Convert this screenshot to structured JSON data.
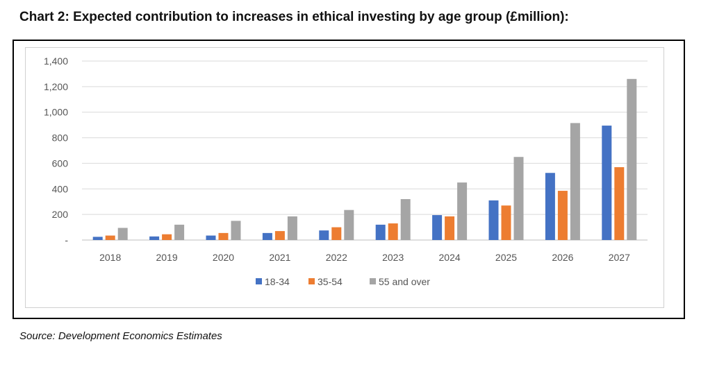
{
  "title": "Chart 2: Expected contribution to increases in ethical investing by age group (£million):",
  "source": "Source: Development Economics Estimates",
  "chart_data": {
    "type": "bar",
    "title": "Chart 2: Expected contribution to increases in ethical investing by age group (£million):",
    "xlabel": "",
    "ylabel": "",
    "ylim": [
      0,
      1400
    ],
    "yticks": [
      0,
      200,
      400,
      600,
      800,
      1000,
      1200,
      1400
    ],
    "ytick_labels": [
      "-",
      "200",
      "400",
      "600",
      "800",
      "1,000",
      "1,200",
      "1,400"
    ],
    "grid": true,
    "legend_position": "bottom",
    "categories": [
      "2018",
      "2019",
      "2020",
      "2021",
      "2022",
      "2023",
      "2024",
      "2025",
      "2026",
      "2027"
    ],
    "series": [
      {
        "name": "18-34",
        "color": "#4472c4",
        "values": [
          25,
          28,
          35,
          55,
          75,
          120,
          195,
          310,
          525,
          895
        ]
      },
      {
        "name": "35-54",
        "color": "#ed7d31",
        "values": [
          35,
          45,
          55,
          70,
          100,
          130,
          185,
          270,
          385,
          570
        ]
      },
      {
        "name": "55 and over",
        "color": "#a5a5a5",
        "values": [
          95,
          120,
          150,
          185,
          235,
          320,
          450,
          650,
          915,
          1260
        ]
      }
    ]
  }
}
